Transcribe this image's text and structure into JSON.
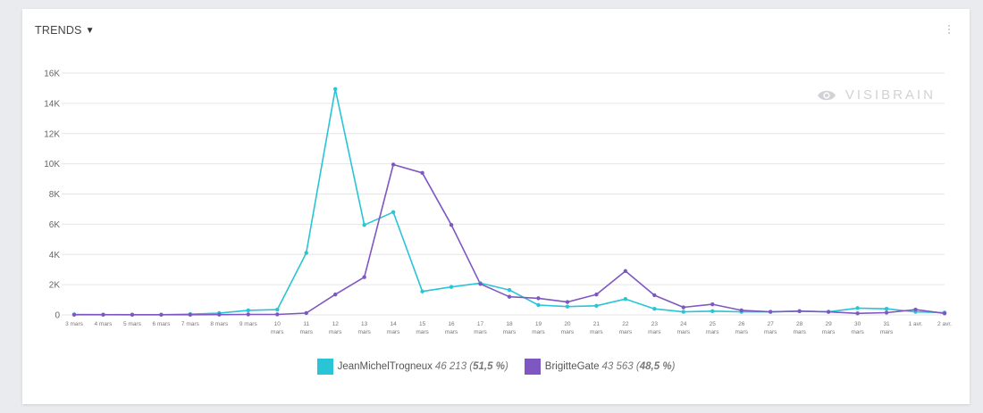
{
  "header": {
    "title": "TRENDS"
  },
  "watermark": {
    "text": "VISIBRAIN"
  },
  "legend": [
    {
      "name": "JeanMichelTrogneux",
      "total": "46 213",
      "pct": "51,5 %",
      "color": "#29c4d6"
    },
    {
      "name": "BrigitteGate",
      "total": "43 563",
      "pct": "48,5 %",
      "color": "#7e57c2"
    }
  ],
  "chart_data": {
    "type": "line",
    "categories": [
      [
        "3 mars"
      ],
      [
        "4 mars"
      ],
      [
        "5 mars"
      ],
      [
        "6 mars"
      ],
      [
        "7 mars"
      ],
      [
        "8 mars"
      ],
      [
        "9 mars"
      ],
      [
        "10",
        "mars"
      ],
      [
        "11",
        "mars"
      ],
      [
        "12",
        "mars"
      ],
      [
        "13",
        "mars"
      ],
      [
        "14",
        "mars"
      ],
      [
        "15",
        "mars"
      ],
      [
        "16",
        "mars"
      ],
      [
        "17",
        "mars"
      ],
      [
        "18",
        "mars"
      ],
      [
        "19",
        "mars"
      ],
      [
        "20",
        "mars"
      ],
      [
        "21",
        "mars"
      ],
      [
        "22",
        "mars"
      ],
      [
        "23",
        "mars"
      ],
      [
        "24",
        "mars"
      ],
      [
        "25",
        "mars"
      ],
      [
        "26",
        "mars"
      ],
      [
        "27",
        "mars"
      ],
      [
        "28",
        "mars"
      ],
      [
        "29",
        "mars"
      ],
      [
        "30",
        "mars"
      ],
      [
        "31",
        "mars"
      ],
      [
        "1 avr."
      ],
      [
        "2 avr."
      ]
    ],
    "ylim": [
      0,
      16000
    ],
    "yticks": [
      {
        "value": 0,
        "label": "0"
      },
      {
        "value": 2000,
        "label": "2K"
      },
      {
        "value": 4000,
        "label": "4K"
      },
      {
        "value": 6000,
        "label": "6K"
      },
      {
        "value": 8000,
        "label": "8K"
      },
      {
        "value": 10000,
        "label": "10K"
      },
      {
        "value": 12000,
        "label": "12K"
      },
      {
        "value": 14000,
        "label": "14K"
      },
      {
        "value": 16000,
        "label": "16K"
      }
    ],
    "grid": true,
    "legend_position": "bottom",
    "series": [
      {
        "name": "JeanMichelTrogneux",
        "color": "#29c4d6",
        "values": [
          30,
          20,
          10,
          10,
          50,
          120,
          300,
          350,
          4100,
          14950,
          5950,
          6800,
          1550,
          1850,
          2100,
          1650,
          650,
          550,
          600,
          1050,
          400,
          200,
          250,
          200,
          200,
          250,
          200,
          450,
          400,
          200,
          150
        ]
      },
      {
        "name": "BrigitteGate",
        "color": "#7e57c2",
        "values": [
          10,
          10,
          10,
          10,
          10,
          20,
          30,
          30,
          120,
          1350,
          2500,
          9950,
          9400,
          5950,
          2050,
          1200,
          1100,
          850,
          1350,
          2900,
          1300,
          500,
          700,
          300,
          200,
          250,
          200,
          100,
          150,
          350,
          100
        ]
      }
    ]
  }
}
